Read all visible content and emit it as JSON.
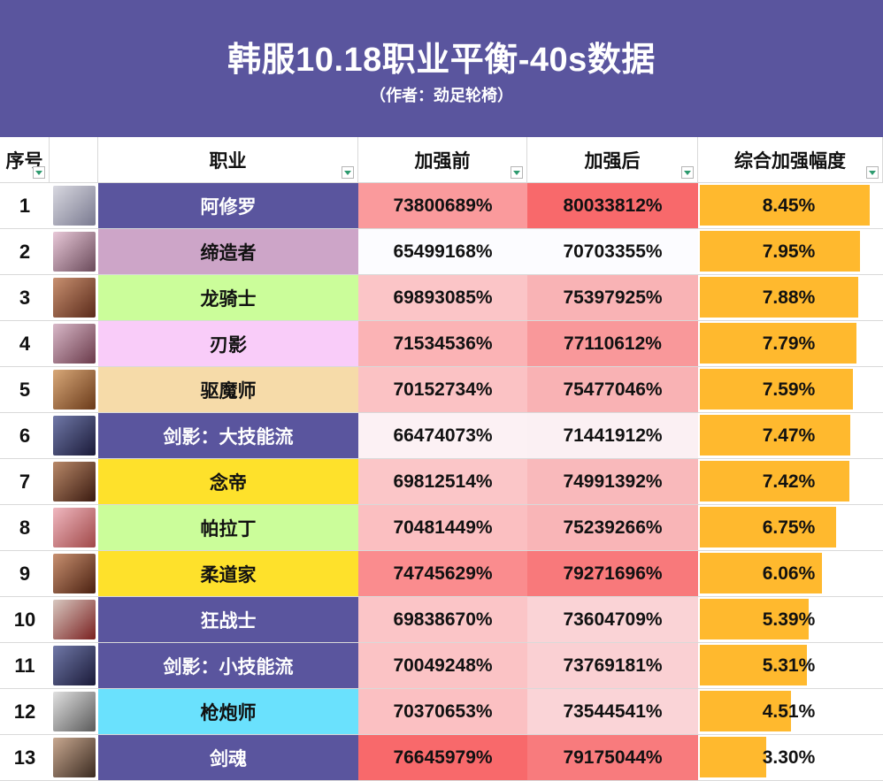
{
  "header": {
    "title": "韩服10.18职业平衡-40s数据",
    "subtitle": "（作者：劲足轮椅）"
  },
  "columns": {
    "index": "序号",
    "job": "职业",
    "before": "加强前",
    "after": "加强后",
    "boost": "综合加强幅度"
  },
  "colors": {
    "banner": "#5a559e",
    "bar": "#ffb92e",
    "heat_high": "#f8696b",
    "heat_low": "#fcfcff"
  },
  "rows": [
    {
      "idx": "1",
      "job": "阿修罗",
      "job_bg": "#5a559e",
      "job_color": "#ffffff",
      "before": "73800689%",
      "before_bg": "#fa9a9c",
      "after": "80033812%",
      "after_bg": "#f8696b",
      "boost": "8.45%",
      "boost_pct": 8.45,
      "portrait": "asura-portrait"
    },
    {
      "idx": "2",
      "job": "缔造者",
      "job_bg": "#cda5c8",
      "job_color": "#111111",
      "before": "65499168%",
      "before_bg": "#fcfcff",
      "after": "70703355%",
      "after_bg": "#fcfcff",
      "boost": "7.95%",
      "boost_pct": 7.95,
      "portrait": "creator-portrait"
    },
    {
      "idx": "3",
      "job": "龙骑士",
      "job_bg": "#cbfd9a",
      "job_color": "#111111",
      "before": "69893085%",
      "before_bg": "#fbc5c7",
      "after": "75397925%",
      "after_bg": "#f9b3b5",
      "boost": "7.88%",
      "boost_pct": 7.88,
      "portrait": "dragon-knight-portrait"
    },
    {
      "idx": "4",
      "job": "刃影",
      "job_bg": "#f9ccf9",
      "job_color": "#111111",
      "before": "71534536%",
      "before_bg": "#fbb3b5",
      "after": "77110612%",
      "after_bg": "#f9989a",
      "boost": "7.79%",
      "boost_pct": 7.79,
      "portrait": "blade-shadow-portrait"
    },
    {
      "idx": "5",
      "job": "驱魔师",
      "job_bg": "#f6dba9",
      "job_color": "#111111",
      "before": "70152734%",
      "before_bg": "#fbc2c4",
      "after": "75477046%",
      "after_bg": "#f9b2b4",
      "boost": "7.59%",
      "boost_pct": 7.59,
      "portrait": "exorcist-portrait"
    },
    {
      "idx": "6",
      "job": "剑影：大技能流",
      "job_bg": "#5a559e",
      "job_color": "#ffffff",
      "before": "66474073%",
      "before_bg": "#fcf1f4",
      "after": "71441912%",
      "after_bg": "#fbf0f3",
      "boost": "7.47%",
      "boost_pct": 7.47,
      "portrait": "swordshadow-portrait-a"
    },
    {
      "idx": "7",
      "job": "念帝",
      "job_bg": "#fee12b",
      "job_color": "#111111",
      "before": "69812514%",
      "before_bg": "#fbc6c8",
      "after": "74991392%",
      "after_bg": "#f9b9bb",
      "boost": "7.42%",
      "boost_pct": 7.42,
      "portrait": "mystic-portrait"
    },
    {
      "idx": "8",
      "job": "帕拉丁",
      "job_bg": "#cbfd9a",
      "job_color": "#111111",
      "before": "70481449%",
      "before_bg": "#fbbfc1",
      "after": "75239266%",
      "after_bg": "#f9b5b7",
      "boost": "6.75%",
      "boost_pct": 6.75,
      "portrait": "paladin-portrait"
    },
    {
      "idx": "9",
      "job": "柔道家",
      "job_bg": "#fee12b",
      "job_color": "#111111",
      "before": "74745629%",
      "before_bg": "#fa8c8e",
      "after": "79271696%",
      "after_bg": "#f8797b",
      "boost": "6.06%",
      "boost_pct": 6.06,
      "portrait": "grappler-portrait"
    },
    {
      "idx": "10",
      "job": "狂战士",
      "job_bg": "#5a559e",
      "job_color": "#ffffff",
      "before": "69838670%",
      "before_bg": "#fbc5c7",
      "after": "73604709%",
      "after_bg": "#fad3d6",
      "boost": "5.39%",
      "boost_pct": 5.39,
      "portrait": "berserker-portrait"
    },
    {
      "idx": "11",
      "job": "剑影：小技能流",
      "job_bg": "#5a559e",
      "job_color": "#ffffff",
      "before": "70049248%",
      "before_bg": "#fbc3c5",
      "after": "73769181%",
      "after_bg": "#fad0d3",
      "boost": "5.31%",
      "boost_pct": 5.31,
      "portrait": "swordshadow-portrait-b"
    },
    {
      "idx": "12",
      "job": "枪炮师",
      "job_bg": "#6ae1fd",
      "job_color": "#111111",
      "before": "70370653%",
      "before_bg": "#fbc0c2",
      "after": "73544541%",
      "after_bg": "#fad4d7",
      "boost": "4.51%",
      "boost_pct": 4.51,
      "portrait": "gunner-portrait"
    },
    {
      "idx": "13",
      "job": "剑魂",
      "job_bg": "#5a559e",
      "job_color": "#ffffff",
      "before": "76645979%",
      "before_bg": "#f8696b",
      "after": "79175044%",
      "after_bg": "#f87b7d",
      "boost": "3.30%",
      "boost_pct": 3.3,
      "portrait": "blade-master-portrait"
    }
  ],
  "boost_max": 9.0
}
